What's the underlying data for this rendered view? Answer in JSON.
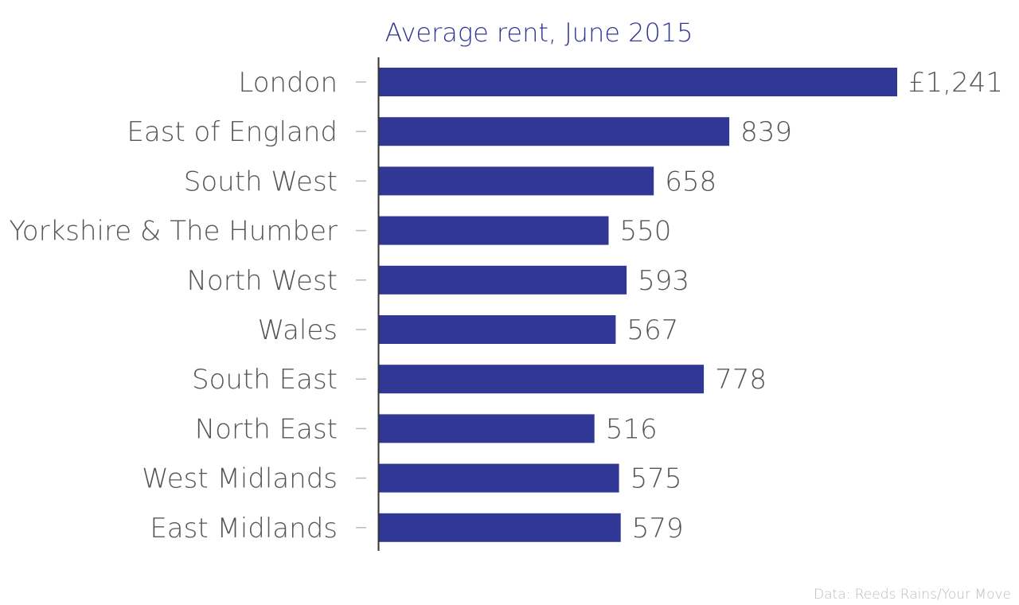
{
  "chart_data": {
    "type": "bar",
    "orientation": "horizontal",
    "title": "Average rent, June 2015",
    "categories": [
      "London",
      "East of England",
      "South West",
      "Yorkshire & The Humber",
      "North West",
      "Wales",
      "South East",
      "North East",
      "West Midlands",
      "East Midlands"
    ],
    "values": [
      1241,
      839,
      658,
      550,
      593,
      567,
      778,
      516,
      575,
      579
    ],
    "value_labels": [
      "£1,241",
      "839",
      "658",
      "550",
      "593",
      "567",
      "778",
      "516",
      "575",
      "579"
    ],
    "xlabel": "",
    "ylabel": "",
    "xlim": [
      0,
      1241
    ],
    "grid": false,
    "legend": "none",
    "source": "Data: Reeds Rains/Your Move"
  },
  "colors": {
    "bar": "#303795",
    "title": "#303795",
    "category_text": "#555555",
    "value_text": "#555555",
    "axis": "#333333",
    "tick": "#bbbbbb",
    "source_text": "#bbbbbb"
  }
}
